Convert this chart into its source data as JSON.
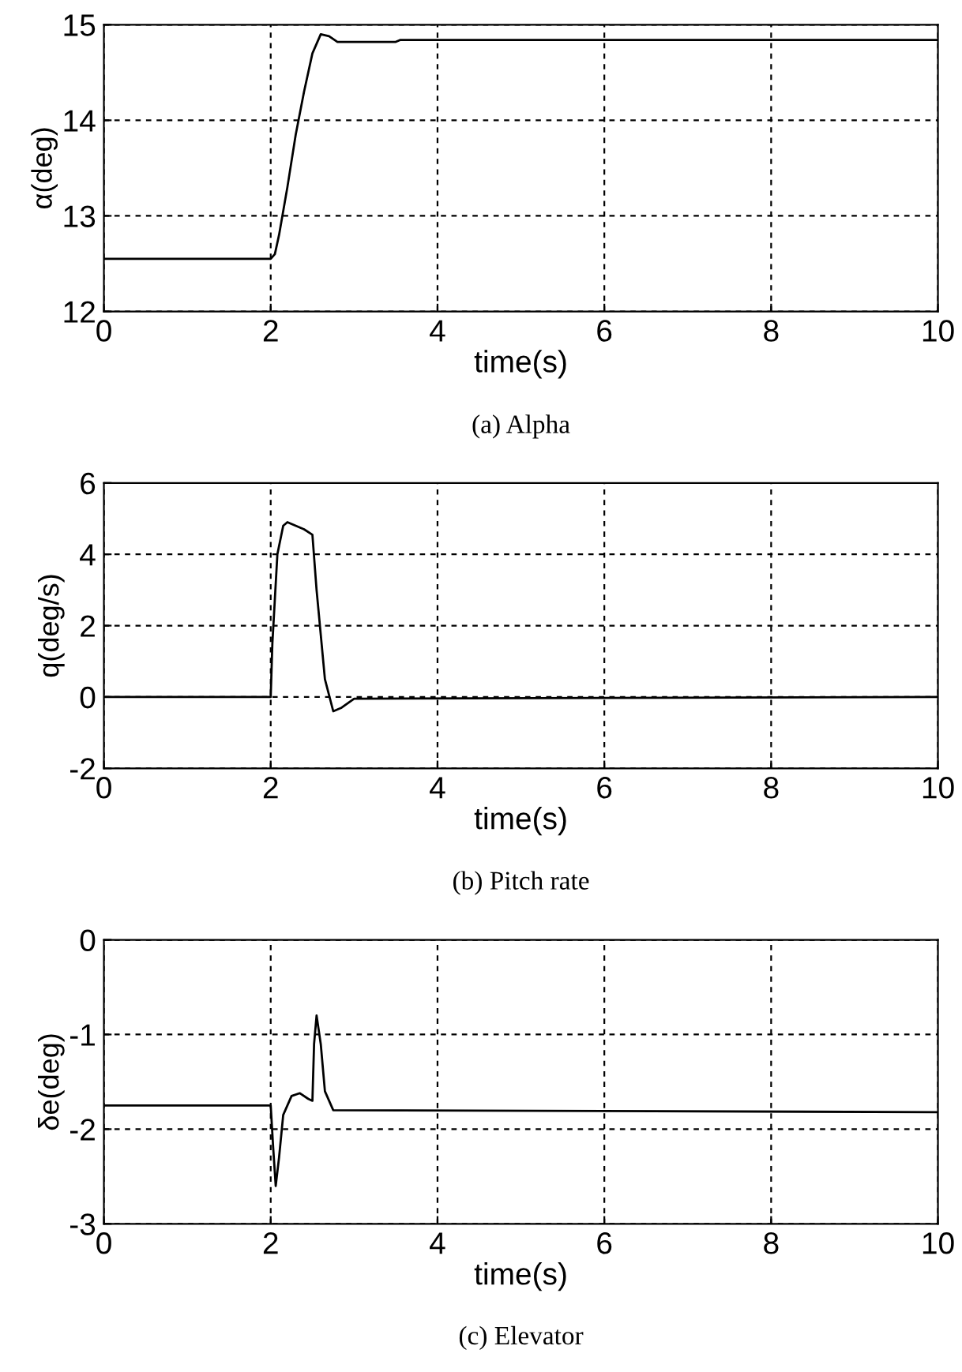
{
  "chart_data": [
    {
      "type": "line",
      "xlabel": "time(s)",
      "ylabel": "α(deg)",
      "xlim": [
        0,
        10
      ],
      "ylim": [
        12,
        15
      ],
      "xticks": [
        0,
        2,
        4,
        6,
        8,
        10
      ],
      "yticks": [
        12,
        13,
        14,
        15
      ],
      "grid": true,
      "line_style": "solid",
      "color": "#000000",
      "annotations": [
        "(a) Alpha"
      ],
      "x": [
        0,
        2.0,
        2.05,
        2.1,
        2.2,
        2.3,
        2.4,
        2.5,
        2.6,
        2.7,
        2.8,
        3.5,
        3.55,
        10
      ],
      "values": [
        12.55,
        12.55,
        12.6,
        12.8,
        13.3,
        13.85,
        14.3,
        14.7,
        14.9,
        14.88,
        14.82,
        14.82,
        14.84,
        14.84
      ]
    },
    {
      "type": "line",
      "xlabel": "time(s)",
      "ylabel": "q(deg/s)",
      "xlim": [
        0,
        10
      ],
      "ylim": [
        -2,
        6
      ],
      "xticks": [
        0,
        2,
        4,
        6,
        8,
        10
      ],
      "yticks": [
        -2,
        0,
        2,
        4,
        6
      ],
      "grid": true,
      "line_style": "solid",
      "color": "#000000",
      "annotations": [
        "(b) Pitch rate"
      ],
      "x": [
        0,
        2.0,
        2.02,
        2.08,
        2.15,
        2.2,
        2.4,
        2.5,
        2.55,
        2.65,
        2.75,
        2.85,
        3.0,
        10
      ],
      "values": [
        0,
        0,
        1.5,
        4.0,
        4.8,
        4.9,
        4.7,
        4.55,
        3.0,
        0.5,
        -0.4,
        -0.3,
        -0.05,
        0
      ]
    },
    {
      "type": "line",
      "xlabel": "time(s)",
      "ylabel": "δe(deg)",
      "xlim": [
        0,
        10
      ],
      "ylim": [
        -3,
        0
      ],
      "xticks": [
        0,
        2,
        4,
        6,
        8,
        10
      ],
      "yticks": [
        {
          "value": -3,
          "label": "-3"
        },
        {
          "value": -2,
          "label": "-2"
        },
        {
          "value": -1,
          "label": "-1"
        },
        0
      ],
      "grid": true,
      "line_style": "solid",
      "color": "#000000",
      "annotations": [
        "(c) Elevator"
      ],
      "x": [
        0,
        2.0,
        2.03,
        2.06,
        2.1,
        2.15,
        2.25,
        2.35,
        2.45,
        2.5,
        2.52,
        2.55,
        2.6,
        2.65,
        2.75,
        10
      ],
      "values": [
        -1.75,
        -1.75,
        -2.2,
        -2.6,
        -2.3,
        -1.85,
        -1.65,
        -1.62,
        -1.68,
        -1.7,
        -1.1,
        -0.8,
        -1.1,
        -1.6,
        -1.8,
        -1.82
      ]
    }
  ]
}
